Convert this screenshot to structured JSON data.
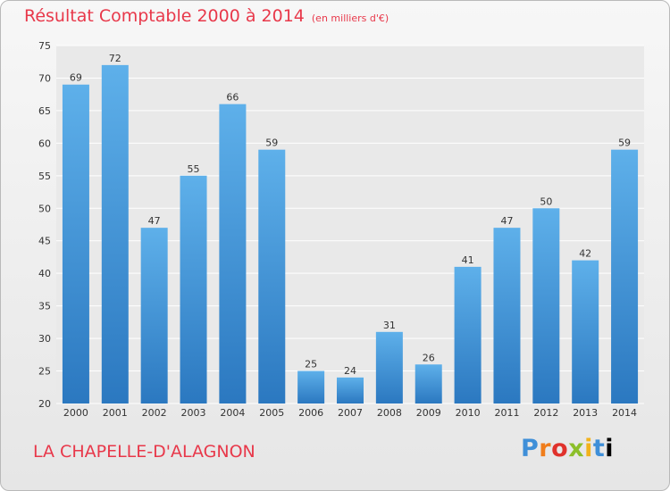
{
  "header": {
    "title": "Résultat Comptable 2000 à 2014",
    "unit": "(en milliers d'€)"
  },
  "footer": {
    "place": "LA CHAPELLE-D'ALAGNON",
    "brand": [
      "P",
      "r",
      "o",
      "x",
      "i",
      "t",
      "i"
    ]
  },
  "colors": {
    "title": "#e8384a",
    "bar_top": "#5eb0ea",
    "bar_bottom": "#2b78c0",
    "plot_bg": "#e9e9e9",
    "grid": "#ffffff"
  },
  "chart_data": {
    "type": "bar",
    "title": "Résultat Comptable 2000 à 2014",
    "subtitle": "(en milliers d'€)",
    "xlabel": "",
    "ylabel": "",
    "categories": [
      "2000",
      "2001",
      "2002",
      "2003",
      "2004",
      "2005",
      "2006",
      "2007",
      "2008",
      "2009",
      "2010",
      "2011",
      "2012",
      "2013",
      "2014"
    ],
    "values": [
      69,
      72,
      47,
      55,
      66,
      59,
      25,
      24,
      31,
      26,
      41,
      47,
      50,
      42,
      59
    ],
    "ylim": [
      20,
      75
    ],
    "yticks": [
      20,
      25,
      30,
      35,
      40,
      45,
      50,
      55,
      60,
      65,
      70,
      75
    ],
    "grid": true,
    "data_labels": true
  }
}
